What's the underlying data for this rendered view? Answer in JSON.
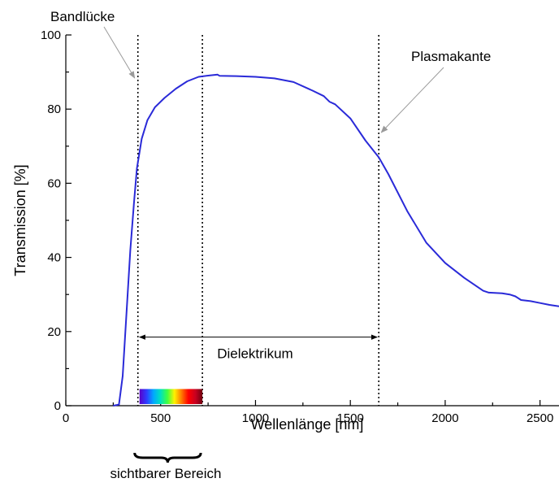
{
  "chart_data": {
    "type": "line",
    "xlabel": "Wellenlänge [nm]",
    "ylabel": "Transmission [%]",
    "xlim": [
      0,
      2600
    ],
    "ylim": [
      0,
      100
    ],
    "xticks": [
      0,
      500,
      1000,
      1500,
      2000,
      2500
    ],
    "yticks": [
      0,
      20,
      40,
      60,
      80,
      100
    ],
    "grid": false,
    "series": [
      {
        "color": "#2a2ad8",
        "points": [
          [
            250,
            0
          ],
          [
            280,
            0.3
          ],
          [
            300,
            8
          ],
          [
            320,
            25
          ],
          [
            340,
            42
          ],
          [
            360,
            55
          ],
          [
            375,
            64
          ],
          [
            400,
            72
          ],
          [
            430,
            77
          ],
          [
            470,
            80.5
          ],
          [
            520,
            83
          ],
          [
            580,
            85.5
          ],
          [
            640,
            87.5
          ],
          [
            700,
            88.7
          ],
          [
            760,
            89.1
          ],
          [
            800,
            89.3
          ],
          [
            810,
            89.0
          ],
          [
            900,
            88.9
          ],
          [
            1000,
            88.7
          ],
          [
            1100,
            88.3
          ],
          [
            1200,
            87.3
          ],
          [
            1300,
            85.0
          ],
          [
            1360,
            83.5
          ],
          [
            1390,
            82.0
          ],
          [
            1420,
            81.3
          ],
          [
            1500,
            77.5
          ],
          [
            1580,
            71.5
          ],
          [
            1650,
            67.0
          ],
          [
            1700,
            62.5
          ],
          [
            1800,
            52.5
          ],
          [
            1900,
            44.0
          ],
          [
            2000,
            38.5
          ],
          [
            2100,
            34.5
          ],
          [
            2200,
            31.0
          ],
          [
            2230,
            30.5
          ],
          [
            2300,
            30.3
          ],
          [
            2340,
            30.0
          ],
          [
            2370,
            29.5
          ],
          [
            2400,
            28.5
          ],
          [
            2450,
            28.2
          ],
          [
            2500,
            27.7
          ],
          [
            2550,
            27.2
          ],
          [
            2600,
            26.8
          ]
        ]
      }
    ],
    "vertical_lines_nm": [
      380,
      720,
      1650
    ],
    "visible_spectrum_nm": [
      380,
      720
    ],
    "visible_spectrum_colors": [
      "#5a00c8",
      "#2f3bff",
      "#00a8ff",
      "#00e0c0",
      "#40ff40",
      "#fff200",
      "#ff7a00",
      "#ff0000",
      "#c80020",
      "#700010"
    ],
    "dielectric_range_nm": [
      380,
      1650
    ],
    "dielectric_arrow_y": 18.5,
    "annotations": {
      "band_gap": "Bandlücke",
      "plasma_edge": "Plasmakante",
      "dielectric": "Dielektrikum",
      "visible_range": "sichtbarer Bereich"
    }
  }
}
